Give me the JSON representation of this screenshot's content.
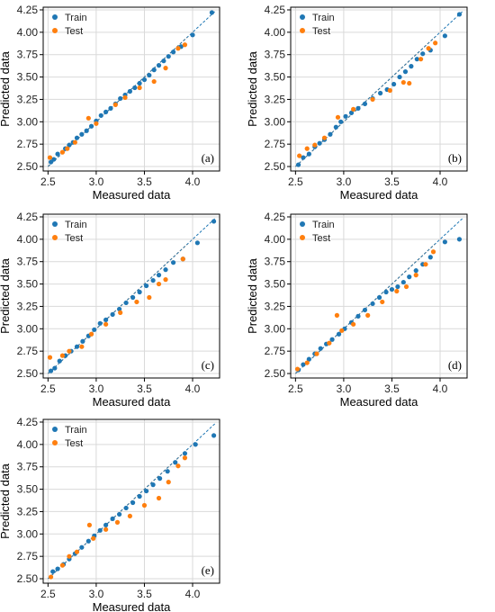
{
  "chart_data": [
    {
      "type": "scatter",
      "panel_label": "(a)",
      "xlabel": "Measured data",
      "ylabel": "Predicted data",
      "xlim": [
        2.45,
        4.28
      ],
      "ylim": [
        2.45,
        4.28
      ],
      "xticks": [
        "2.5",
        "3.0",
        "3.5",
        "4.0"
      ],
      "yticks": [
        "2.50",
        "2.75",
        "3.00",
        "3.25",
        "3.50",
        "3.75",
        "4.00",
        "4.25"
      ],
      "grid": true,
      "legend": "top-left",
      "series": [
        {
          "name": "Train",
          "color": "#1f77b4",
          "points": [
            [
              2.53,
              2.55
            ],
            [
              2.56,
              2.58
            ],
            [
              2.6,
              2.64
            ],
            [
              2.68,
              2.7
            ],
            [
              2.72,
              2.74
            ],
            [
              2.76,
              2.77
            ],
            [
              2.8,
              2.82
            ],
            [
              2.85,
              2.86
            ],
            [
              2.9,
              2.9
            ],
            [
              2.95,
              2.95
            ],
            [
              3.0,
              3.01
            ],
            [
              3.05,
              3.07
            ],
            [
              3.1,
              3.11
            ],
            [
              3.15,
              3.15
            ],
            [
              3.2,
              3.2
            ],
            [
              3.25,
              3.26
            ],
            [
              3.3,
              3.3
            ],
            [
              3.35,
              3.34
            ],
            [
              3.4,
              3.38
            ],
            [
              3.45,
              3.43
            ],
            [
              3.5,
              3.47
            ],
            [
              3.55,
              3.52
            ],
            [
              3.6,
              3.58
            ],
            [
              3.65,
              3.63
            ],
            [
              3.7,
              3.68
            ],
            [
              3.75,
              3.73
            ],
            [
              3.8,
              3.78
            ],
            [
              3.88,
              3.84
            ],
            [
              4.0,
              3.97
            ],
            [
              4.2,
              4.22
            ]
          ]
        },
        {
          "name": "Test",
          "color": "#ff7f0e",
          "points": [
            [
              2.52,
              2.6
            ],
            [
              2.65,
              2.66
            ],
            [
              2.7,
              2.7
            ],
            [
              2.78,
              2.77
            ],
            [
              2.92,
              3.04
            ],
            [
              3.0,
              2.98
            ],
            [
              3.2,
              3.19
            ],
            [
              3.3,
              3.27
            ],
            [
              3.45,
              3.38
            ],
            [
              3.6,
              3.45
            ],
            [
              3.72,
              3.6
            ],
            [
              3.85,
              3.82
            ],
            [
              3.92,
              3.86
            ]
          ]
        }
      ]
    },
    {
      "type": "scatter",
      "panel_label": "(b)",
      "xlabel": "Measured data",
      "ylabel": "Predicted data",
      "xlim": [
        2.45,
        4.28
      ],
      "ylim": [
        2.45,
        4.28
      ],
      "xticks": [
        "2.5",
        "3.0",
        "3.5",
        "4.0"
      ],
      "yticks": [
        "2.50",
        "2.75",
        "3.00",
        "3.25",
        "3.50",
        "3.75",
        "4.00",
        "4.25"
      ],
      "grid": true,
      "legend": "top-left",
      "series": [
        {
          "name": "Train",
          "color": "#1f77b4",
          "points": [
            [
              2.53,
              2.52
            ],
            [
              2.58,
              2.6
            ],
            [
              2.64,
              2.64
            ],
            [
              2.7,
              2.72
            ],
            [
              2.75,
              2.76
            ],
            [
              2.8,
              2.8
            ],
            [
              2.86,
              2.86
            ],
            [
              2.92,
              2.94
            ],
            [
              2.97,
              3.0
            ],
            [
              3.02,
              3.06
            ],
            [
              3.08,
              3.1
            ],
            [
              3.15,
              3.15
            ],
            [
              3.22,
              3.2
            ],
            [
              3.3,
              3.26
            ],
            [
              3.38,
              3.32
            ],
            [
              3.45,
              3.36
            ],
            [
              3.52,
              3.42
            ],
            [
              3.58,
              3.5
            ],
            [
              3.64,
              3.56
            ],
            [
              3.7,
              3.62
            ],
            [
              3.76,
              3.7
            ],
            [
              3.82,
              3.76
            ],
            [
              3.9,
              3.8
            ],
            [
              4.05,
              3.96
            ],
            [
              4.2,
              4.2
            ]
          ]
        },
        {
          "name": "Test",
          "color": "#ff7f0e",
          "points": [
            [
              2.54,
              2.62
            ],
            [
              2.62,
              2.7
            ],
            [
              2.7,
              2.74
            ],
            [
              2.8,
              2.82
            ],
            [
              2.94,
              3.05
            ],
            [
              3.1,
              3.14
            ],
            [
              3.3,
              3.25
            ],
            [
              3.48,
              3.35
            ],
            [
              3.62,
              3.44
            ],
            [
              3.68,
              3.43
            ],
            [
              3.8,
              3.7
            ],
            [
              3.88,
              3.82
            ],
            [
              3.95,
              3.88
            ]
          ]
        }
      ]
    },
    {
      "type": "scatter",
      "panel_label": "(c)",
      "xlabel": "Measured data",
      "ylabel": "Predicted data",
      "xlim": [
        2.45,
        4.28
      ],
      "ylim": [
        2.45,
        4.28
      ],
      "xticks": [
        "2.5",
        "3.0",
        "3.5",
        "4.0"
      ],
      "yticks": [
        "2.50",
        "2.75",
        "3.00",
        "3.25",
        "3.50",
        "3.75",
        "4.00",
        "4.25"
      ],
      "grid": true,
      "legend": "top-left",
      "series": [
        {
          "name": "Train",
          "color": "#1f77b4",
          "points": [
            [
              2.53,
              2.53
            ],
            [
              2.57,
              2.56
            ],
            [
              2.62,
              2.64
            ],
            [
              2.68,
              2.7
            ],
            [
              2.74,
              2.75
            ],
            [
              2.8,
              2.8
            ],
            [
              2.86,
              2.86
            ],
            [
              2.92,
              2.92
            ],
            [
              2.98,
              2.99
            ],
            [
              3.04,
              3.06
            ],
            [
              3.1,
              3.1
            ],
            [
              3.17,
              3.16
            ],
            [
              3.24,
              3.22
            ],
            [
              3.31,
              3.29
            ],
            [
              3.38,
              3.35
            ],
            [
              3.45,
              3.41
            ],
            [
              3.52,
              3.48
            ],
            [
              3.59,
              3.54
            ],
            [
              3.65,
              3.6
            ],
            [
              3.72,
              3.66
            ],
            [
              3.8,
              3.74
            ],
            [
              3.9,
              3.78
            ],
            [
              4.05,
              3.96
            ],
            [
              4.22,
              4.2
            ]
          ]
        },
        {
          "name": "Test",
          "color": "#ff7f0e",
          "points": [
            [
              2.52,
              2.68
            ],
            [
              2.65,
              2.7
            ],
            [
              2.72,
              2.75
            ],
            [
              2.85,
              2.8
            ],
            [
              2.95,
              2.94
            ],
            [
              3.1,
              3.05
            ],
            [
              3.25,
              3.18
            ],
            [
              3.42,
              3.3
            ],
            [
              3.55,
              3.35
            ],
            [
              3.65,
              3.5
            ],
            [
              3.72,
              3.55
            ],
            [
              3.9,
              3.78
            ]
          ]
        }
      ]
    },
    {
      "type": "scatter",
      "panel_label": "(d)",
      "xlabel": "Measured data",
      "ylabel": "Predicted data",
      "xlim": [
        2.45,
        4.28
      ],
      "ylim": [
        2.45,
        4.28
      ],
      "xticks": [
        "2.5",
        "3.0",
        "3.5",
        "4.0"
      ],
      "yticks": [
        "2.50",
        "2.75",
        "3.00",
        "3.25",
        "3.50",
        "3.75",
        "4.00",
        "4.25"
      ],
      "grid": true,
      "legend": "top-left",
      "series": [
        {
          "name": "Train",
          "color": "#1f77b4",
          "points": [
            [
              2.53,
              2.54
            ],
            [
              2.58,
              2.6
            ],
            [
              2.64,
              2.66
            ],
            [
              2.7,
              2.72
            ],
            [
              2.76,
              2.78
            ],
            [
              2.82,
              2.83
            ],
            [
              2.88,
              2.88
            ],
            [
              2.95,
              2.94
            ],
            [
              3.01,
              3.0
            ],
            [
              3.08,
              3.07
            ],
            [
              3.15,
              3.14
            ],
            [
              3.22,
              3.21
            ],
            [
              3.3,
              3.28
            ],
            [
              3.37,
              3.35
            ],
            [
              3.44,
              3.41
            ],
            [
              3.5,
              3.44
            ],
            [
              3.56,
              3.47
            ],
            [
              3.62,
              3.52
            ],
            [
              3.68,
              3.58
            ],
            [
              3.75,
              3.65
            ],
            [
              3.82,
              3.72
            ],
            [
              3.9,
              3.8
            ],
            [
              4.05,
              3.97
            ],
            [
              4.2,
              4.0
            ]
          ]
        },
        {
          "name": "Test",
          "color": "#ff7f0e",
          "points": [
            [
              2.52,
              2.55
            ],
            [
              2.62,
              2.62
            ],
            [
              2.72,
              2.72
            ],
            [
              2.85,
              2.84
            ],
            [
              2.93,
              3.15
            ],
            [
              2.98,
              2.98
            ],
            [
              3.1,
              3.05
            ],
            [
              3.25,
              3.15
            ],
            [
              3.4,
              3.3
            ],
            [
              3.55,
              3.42
            ],
            [
              3.65,
              3.47
            ],
            [
              3.75,
              3.6
            ],
            [
              3.85,
              3.72
            ],
            [
              3.93,
              3.86
            ]
          ]
        }
      ]
    },
    {
      "type": "scatter",
      "panel_label": "(e)",
      "xlabel": "Measured data",
      "ylabel": "Predicted data",
      "xlim": [
        2.45,
        4.28
      ],
      "ylim": [
        2.45,
        4.28
      ],
      "xticks": [
        "2.5",
        "3.0",
        "3.5",
        "4.0"
      ],
      "yticks": [
        "2.50",
        "2.75",
        "3.00",
        "3.25",
        "3.50",
        "3.75",
        "4.00",
        "4.25"
      ],
      "grid": true,
      "legend": "top-left",
      "series": [
        {
          "name": "Train",
          "color": "#1f77b4",
          "points": [
            [
              2.55,
              2.58
            ],
            [
              2.6,
              2.61
            ],
            [
              2.66,
              2.66
            ],
            [
              2.72,
              2.72
            ],
            [
              2.78,
              2.78
            ],
            [
              2.85,
              2.85
            ],
            [
              2.92,
              2.92
            ],
            [
              2.98,
              2.98
            ],
            [
              3.04,
              3.04
            ],
            [
              3.1,
              3.1
            ],
            [
              3.17,
              3.17
            ],
            [
              3.24,
              3.22
            ],
            [
              3.31,
              3.29
            ],
            [
              3.38,
              3.35
            ],
            [
              3.45,
              3.42
            ],
            [
              3.52,
              3.48
            ],
            [
              3.59,
              3.55
            ],
            [
              3.66,
              3.62
            ],
            [
              3.74,
              3.7
            ],
            [
              3.82,
              3.8
            ],
            [
              3.92,
              3.9
            ],
            [
              4.03,
              4.0
            ],
            [
              4.22,
              4.1
            ]
          ]
        },
        {
          "name": "Test",
          "color": "#ff7f0e",
          "points": [
            [
              2.53,
              2.52
            ],
            [
              2.65,
              2.65
            ],
            [
              2.72,
              2.75
            ],
            [
              2.8,
              2.8
            ],
            [
              2.93,
              3.1
            ],
            [
              2.97,
              2.95
            ],
            [
              3.1,
              3.05
            ],
            [
              3.22,
              3.13
            ],
            [
              3.35,
              3.2
            ],
            [
              3.5,
              3.32
            ],
            [
              3.65,
              3.4
            ],
            [
              3.75,
              3.58
            ],
            [
              3.85,
              3.76
            ],
            [
              3.92,
              3.85
            ]
          ]
        }
      ]
    }
  ]
}
